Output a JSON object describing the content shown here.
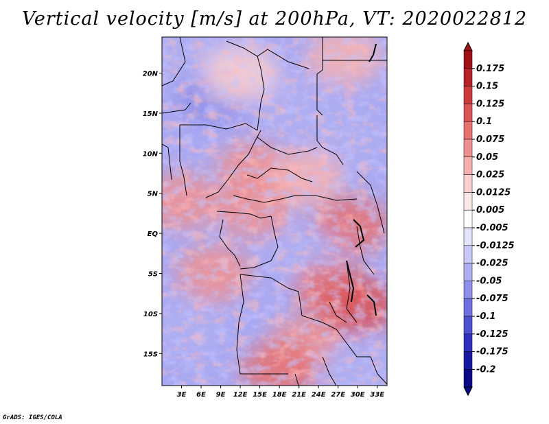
{
  "title": "Vertical velocity [m/s] at 200hPa, VT: 2020022812",
  "credit": "GrADS: IGES/COLA",
  "chart_data": {
    "type": "heatmap",
    "variable": "Vertical velocity",
    "units": "m/s",
    "level": "200hPa",
    "valid_time": "2020022812",
    "lat_range": [
      -19,
      24.5
    ],
    "lon_range": [
      0,
      34.5
    ],
    "lat_ticks": [
      {
        "value": 20,
        "label": "20N"
      },
      {
        "value": 15,
        "label": "15N"
      },
      {
        "value": 10,
        "label": "10N"
      },
      {
        "value": 5,
        "label": "5N"
      },
      {
        "value": 0,
        "label": "EQ"
      },
      {
        "value": -5,
        "label": "5S"
      },
      {
        "value": -10,
        "label": "10S"
      },
      {
        "value": -15,
        "label": "15S"
      }
    ],
    "lon_ticks": [
      {
        "value": 3,
        "label": "3E"
      },
      {
        "value": 6,
        "label": "6E"
      },
      {
        "value": 9,
        "label": "9E"
      },
      {
        "value": 12,
        "label": "12E"
      },
      {
        "value": 15,
        "label": "15E"
      },
      {
        "value": 18,
        "label": "18E"
      },
      {
        "value": 21,
        "label": "21E"
      },
      {
        "value": 24,
        "label": "24E"
      },
      {
        "value": 27,
        "label": "27E"
      },
      {
        "value": 30,
        "label": "30E"
      },
      {
        "value": 33,
        "label": "33E"
      }
    ],
    "colorbar": {
      "labels": [
        "0.175",
        "0.15",
        "0.125",
        "0.1",
        "0.075",
        "0.05",
        "0.025",
        "0.0125",
        "0.005",
        "-0.005",
        "-0.0125",
        "-0.025",
        "-0.05",
        "-0.075",
        "-0.1",
        "-0.125",
        "-0.175",
        "-0.2"
      ],
      "colors": [
        "#a01018",
        "#b8202a",
        "#cc3a3e",
        "#dc5458",
        "#e67272",
        "#ef9090",
        "#f6b0b0",
        "#fad0d0",
        "#fde8e8",
        "#ffffff",
        "#e4e4fb",
        "#cacaf6",
        "#aeaef1",
        "#9090ea",
        "#7070e0",
        "#5050d2",
        "#3030bc",
        "#1818a0",
        "#0a0a86"
      ]
    },
    "regions": [
      {
        "lat": 22,
        "lon": 3,
        "value": -0.03
      },
      {
        "lat": 17,
        "lon": 8,
        "value": -0.06
      },
      {
        "lat": 16,
        "lon": 20,
        "value": -0.05
      },
      {
        "lat": 20,
        "lon": 12,
        "value": 0.02
      },
      {
        "lat": 22,
        "lon": 28,
        "value": 0.03
      },
      {
        "lat": 12,
        "lon": 28,
        "value": -0.04
      },
      {
        "lat": 8,
        "lon": 14,
        "value": 0.05
      },
      {
        "lat": 7,
        "lon": 22,
        "value": 0.04
      },
      {
        "lat": 4,
        "lon": 3,
        "value": 0.06
      },
      {
        "lat": 3,
        "lon": 14,
        "value": 0.07
      },
      {
        "lat": 1,
        "lon": 29,
        "value": 0.08
      },
      {
        "lat": -3,
        "lon": 22,
        "value": -0.03
      },
      {
        "lat": -5,
        "lon": 8,
        "value": 0.06
      },
      {
        "lat": -7,
        "lon": 26,
        "value": 0.08
      },
      {
        "lat": -9,
        "lon": 30,
        "value": 0.1
      },
      {
        "lat": -12,
        "lon": 3,
        "value": -0.04
      },
      {
        "lat": -14,
        "lon": 22,
        "value": 0.05
      },
      {
        "lat": -17,
        "lon": 18,
        "value": 0.09
      },
      {
        "lat": -17,
        "lon": 30,
        "value": -0.03
      }
    ]
  }
}
